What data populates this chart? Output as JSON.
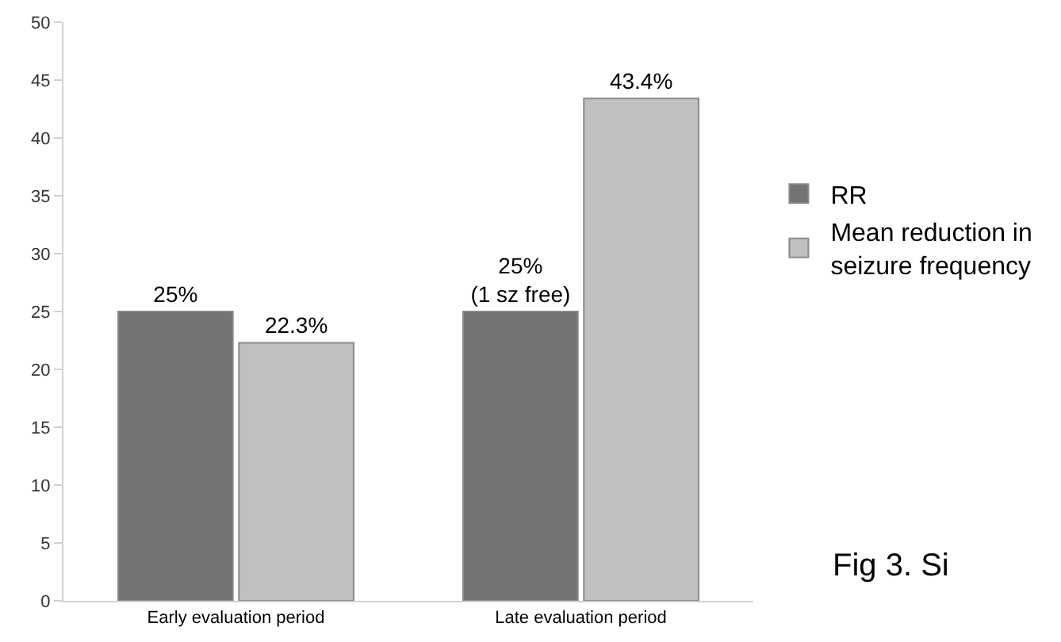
{
  "chart_data": {
    "type": "bar",
    "categories": [
      "Early evaluation period",
      "Late evaluation period"
    ],
    "series": [
      {
        "name": "RR",
        "color": "#737373",
        "values": [
          25,
          25
        ],
        "value_labels": [
          "25%",
          "25%\n(1 sz free)"
        ]
      },
      {
        "name": "Mean reduction in\nseizure frequency",
        "color": "#c0c0c0",
        "values": [
          22.3,
          43.4
        ],
        "value_labels": [
          "22.3%",
          "43.4%"
        ]
      }
    ],
    "ylim": [
      0,
      50
    ],
    "yticks": [
      0,
      5,
      10,
      15,
      20,
      25,
      30,
      35,
      40,
      45,
      50
    ],
    "grid": false,
    "legend": "right",
    "annotations": [
      "Fig 3. Si"
    ]
  }
}
